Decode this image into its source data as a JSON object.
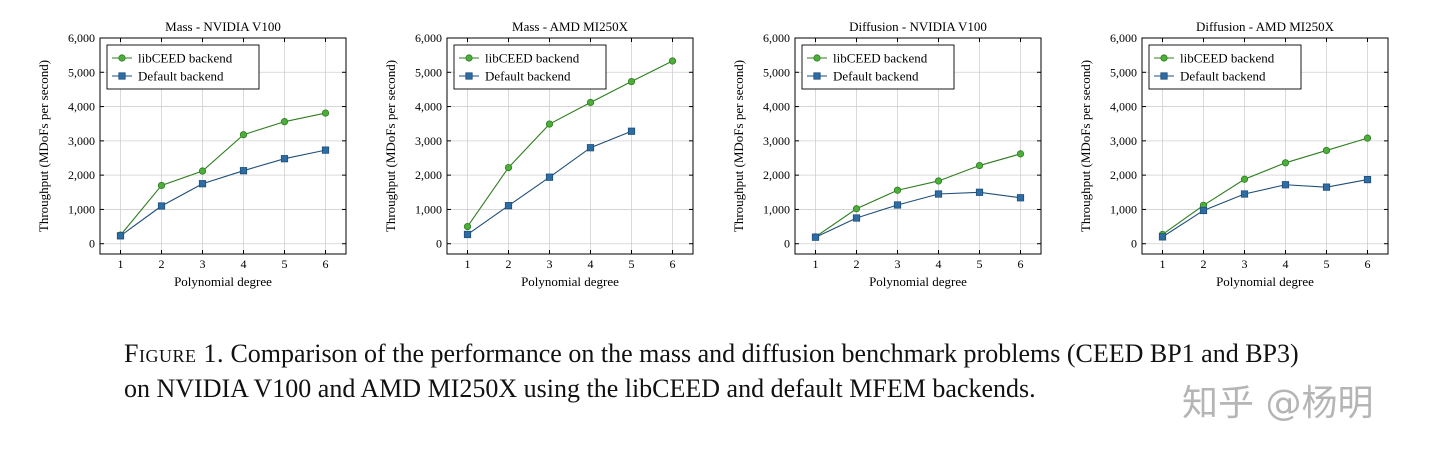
{
  "colors": {
    "libceed": "#2e7d1f",
    "libceed_fill": "#4caf3a",
    "default": "#1f4e79",
    "default_fill": "#2e6da4",
    "grid": "#d0d0d0"
  },
  "chart_data": [
    {
      "type": "line",
      "title": "Mass - NVIDIA V100",
      "xlabel": "Polynomial degree",
      "ylabel": "Throughput (MDoFs per second)",
      "xlim": [
        0.5,
        6.5
      ],
      "ylim": [
        -300,
        6000
      ],
      "xticks": [
        1,
        2,
        3,
        4,
        5,
        6
      ],
      "yticks": [
        0,
        1000,
        2000,
        3000,
        4000,
        5000,
        6000
      ],
      "ytick_labels": [
        "0",
        "1,000",
        "2,000",
        "3,000",
        "4,000",
        "5,000",
        "6,000"
      ],
      "legend": "top-left",
      "series": [
        {
          "name": "libCEED backend",
          "x": [
            1,
            2,
            3,
            4,
            5,
            6
          ],
          "y": [
            250,
            1700,
            2120,
            3180,
            3560,
            3810
          ]
        },
        {
          "name": "Default backend",
          "x": [
            1,
            2,
            3,
            4,
            5,
            6
          ],
          "y": [
            230,
            1100,
            1750,
            2130,
            2480,
            2730
          ]
        }
      ]
    },
    {
      "type": "line",
      "title": "Mass - AMD MI250X",
      "xlabel": "Polynomial degree",
      "ylabel": "Throughput (MDoFs per second)",
      "xlim": [
        0.5,
        6.5
      ],
      "ylim": [
        -300,
        6000
      ],
      "xticks": [
        1,
        2,
        3,
        4,
        5,
        6
      ],
      "yticks": [
        0,
        1000,
        2000,
        3000,
        4000,
        5000,
        6000
      ],
      "ytick_labels": [
        "0",
        "1,000",
        "2,000",
        "3,000",
        "4,000",
        "5,000",
        "6,000"
      ],
      "legend": "top-left",
      "series": [
        {
          "name": "libCEED backend",
          "x": [
            1,
            2,
            3,
            4,
            5,
            6
          ],
          "y": [
            500,
            2220,
            3490,
            4120,
            4730,
            5330
          ]
        },
        {
          "name": "Default backend",
          "x": [
            1,
            2,
            3,
            4,
            5
          ],
          "y": [
            270,
            1110,
            1940,
            2800,
            3280
          ]
        }
      ]
    },
    {
      "type": "line",
      "title": "Diffusion - NVIDIA V100",
      "xlabel": "Polynomial degree",
      "ylabel": "Throughput (MDoFs per second)",
      "xlim": [
        0.5,
        6.5
      ],
      "ylim": [
        -300,
        6000
      ],
      "xticks": [
        1,
        2,
        3,
        4,
        5,
        6
      ],
      "yticks": [
        0,
        1000,
        2000,
        3000,
        4000,
        5000,
        6000
      ],
      "ytick_labels": [
        "0",
        "1,000",
        "2,000",
        "3,000",
        "4,000",
        "5,000",
        "6,000"
      ],
      "legend": "top-left",
      "series": [
        {
          "name": "libCEED backend",
          "x": [
            1,
            2,
            3,
            4,
            5,
            6
          ],
          "y": [
            200,
            1020,
            1560,
            1830,
            2280,
            2620
          ]
        },
        {
          "name": "Default backend",
          "x": [
            1,
            2,
            3,
            4,
            5,
            6
          ],
          "y": [
            190,
            750,
            1130,
            1450,
            1500,
            1340
          ]
        }
      ]
    },
    {
      "type": "line",
      "title": "Diffusion - AMD MI250X",
      "xlabel": "Polynomial degree",
      "ylabel": "Throughput (MDoFs per second)",
      "xlim": [
        0.5,
        6.5
      ],
      "ylim": [
        -300,
        6000
      ],
      "xticks": [
        1,
        2,
        3,
        4,
        5,
        6
      ],
      "yticks": [
        0,
        1000,
        2000,
        3000,
        4000,
        5000,
        6000
      ],
      "ytick_labels": [
        "0",
        "1,000",
        "2,000",
        "3,000",
        "4,000",
        "5,000",
        "6,000"
      ],
      "legend": "top-left",
      "series": [
        {
          "name": "libCEED backend",
          "x": [
            1,
            2,
            3,
            4,
            5,
            6
          ],
          "y": [
            270,
            1120,
            1880,
            2360,
            2720,
            3080
          ]
        },
        {
          "name": "Default backend",
          "x": [
            1,
            2,
            3,
            4,
            5,
            6
          ],
          "y": [
            200,
            970,
            1450,
            1720,
            1650,
            1870
          ]
        }
      ]
    }
  ],
  "caption": {
    "label": "Figure 1.",
    "text": "Comparison of the performance on the mass and diffusion benchmark problems (CEED BP1 and BP3) on NVIDIA V100 and AMD MI250X using the libCEED and default MFEM backends."
  },
  "watermark": "知乎 @杨明"
}
